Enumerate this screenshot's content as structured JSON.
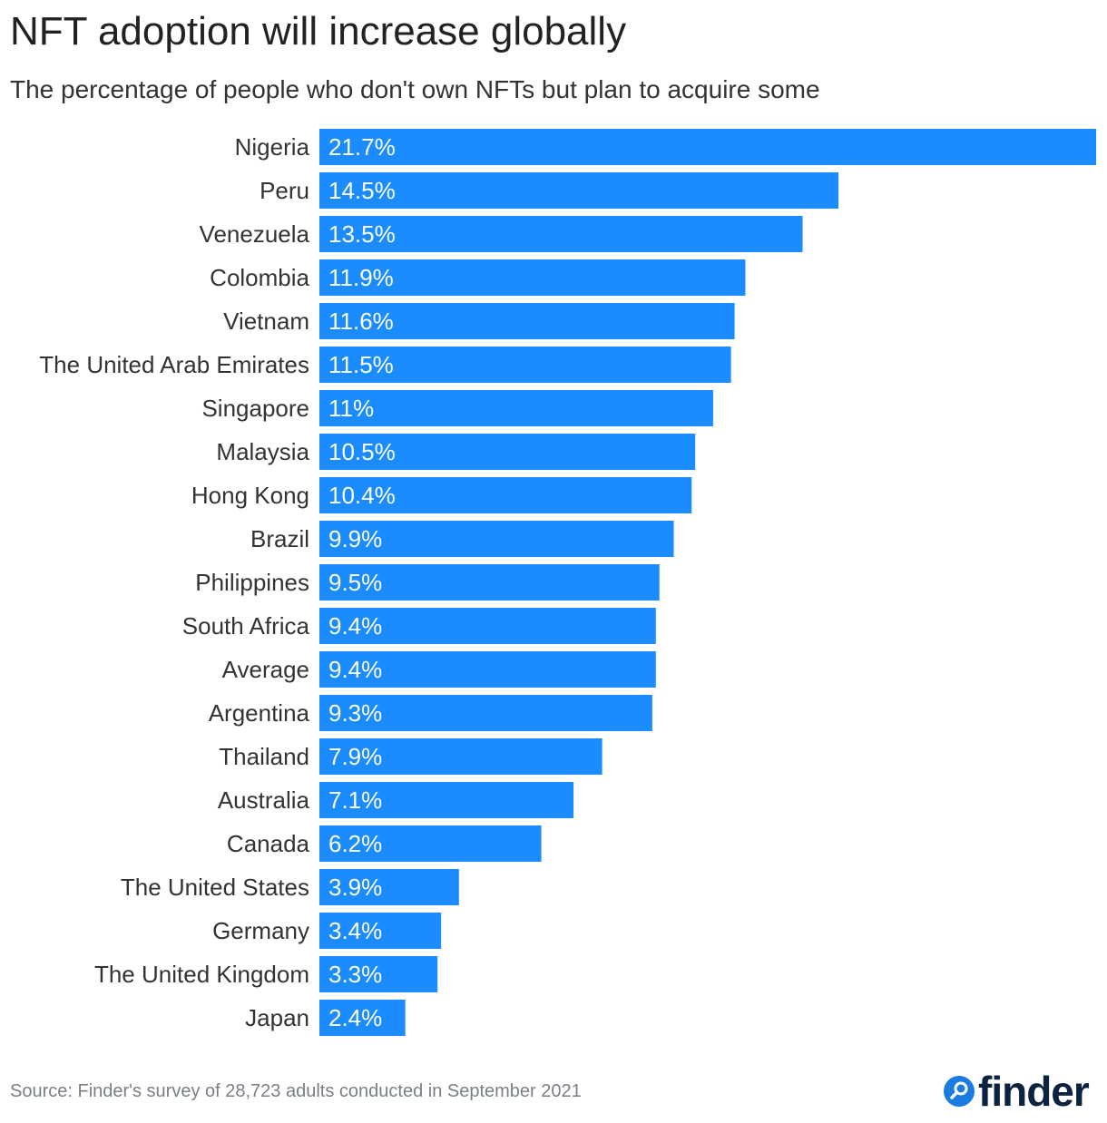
{
  "chart_data": {
    "type": "bar",
    "orientation": "horizontal",
    "title": "NFT adoption will increase globally",
    "subtitle": "The percentage of people who don't own NFTs but plan to acquire some",
    "categories": [
      "Nigeria",
      "Peru",
      "Venezuela",
      "Colombia",
      "Vietnam",
      "The United Arab Emirates",
      "Singapore",
      "Malaysia",
      "Hong Kong",
      "Brazil",
      "Philippines",
      "South Africa",
      "Average",
      "Argentina",
      "Thailand",
      "Australia",
      "Canada",
      "The United States",
      "Germany",
      "The United Kingdom",
      "Japan"
    ],
    "values": [
      21.7,
      14.5,
      13.5,
      11.9,
      11.6,
      11.5,
      11,
      10.5,
      10.4,
      9.9,
      9.5,
      9.4,
      9.4,
      9.3,
      7.9,
      7.1,
      6.2,
      3.9,
      3.4,
      3.3,
      2.4
    ],
    "value_labels": [
      "21.7%",
      "14.5%",
      "13.5%",
      "11.9%",
      "11.6%",
      "11.5%",
      "11%",
      "10.5%",
      "10.4%",
      "9.9%",
      "9.5%",
      "9.4%",
      "9.4%",
      "9.3%",
      "7.9%",
      "7.1%",
      "6.2%",
      "3.9%",
      "3.4%",
      "3.3%",
      "2.4%"
    ],
    "unit": "%",
    "xlim": [
      0,
      21.7
    ],
    "grid": false,
    "bar_color": "#1a8cff",
    "source": "Source: Finder's survey of 28,723 adults conducted in September 2021"
  },
  "brand": {
    "name": "finder",
    "icon": "magnifier-icon",
    "icon_color": "#1a7be0",
    "text_color": "#0d2240"
  }
}
